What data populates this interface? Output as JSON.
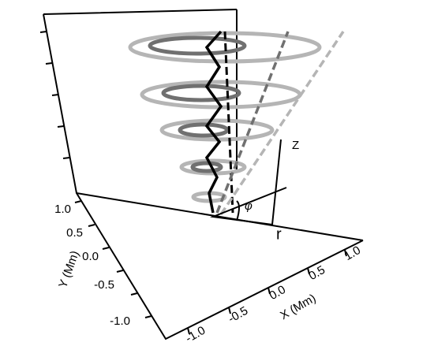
{
  "y_axis": {
    "label": "Y (Mm)",
    "ticks": [
      "1.0",
      "0.5",
      "0.0",
      "-0.5",
      "-1.0"
    ]
  },
  "x_axis": {
    "label": "X (Mm)",
    "ticks": [
      "-1.0",
      "-0.5",
      "0.0",
      "0.5",
      "1.0"
    ]
  },
  "annotations": {
    "z": "Z",
    "r": "r",
    "phi": "φ"
  }
}
